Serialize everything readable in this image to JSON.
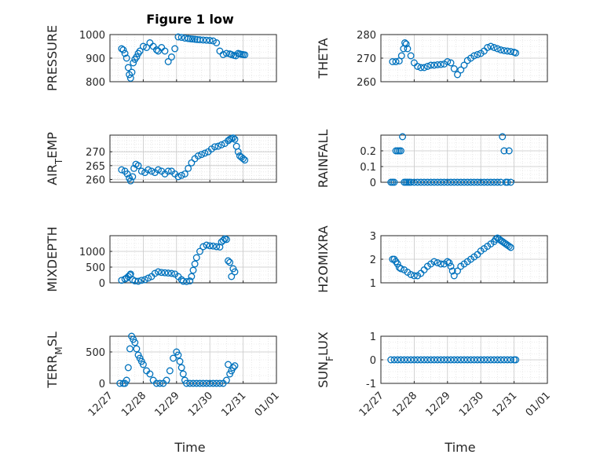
{
  "title": "Figure 1 low",
  "xlabel": "Time",
  "x_tick_labels": [
    "12/27",
    "12/28",
    "12/29",
    "12/30",
    "12/31",
    "01/01"
  ],
  "marker_color": "#0072BD",
  "chart_data": [
    {
      "type": "scatter",
      "ylabel": "PRESSURE",
      "ylim": [
        800,
        1000
      ],
      "yticks": [
        800,
        900,
        1000
      ],
      "xlim": [
        0,
        5
      ],
      "grid": true,
      "x": [
        0.35,
        0.4,
        0.45,
        0.5,
        0.55,
        0.58,
        0.62,
        0.66,
        0.7,
        0.75,
        0.8,
        0.85,
        0.9,
        1.0,
        1.1,
        1.2,
        1.3,
        1.4,
        1.45,
        1.55,
        1.65,
        1.75,
        1.85,
        1.95,
        2.05,
        2.15,
        2.25,
        2.35,
        2.42,
        2.48,
        2.55,
        2.62,
        2.7,
        2.8,
        2.9,
        3.0,
        3.1,
        3.2,
        3.3,
        3.4,
        3.5,
        3.6,
        3.65,
        3.72,
        3.78,
        3.85,
        3.9,
        3.95,
        4.0,
        4.05
      ],
      "y": [
        940,
        935,
        920,
        900,
        860,
        830,
        815,
        840,
        880,
        895,
        905,
        920,
        930,
        950,
        945,
        965,
        950,
        935,
        930,
        945,
        930,
        885,
        905,
        940,
        990,
        988,
        985,
        983,
        982,
        981,
        980,
        979,
        978,
        977,
        976,
        975,
        973,
        965,
        930,
        915,
        920,
        918,
        915,
        912,
        910,
        920,
        918,
        916,
        915,
        914
      ]
    },
    {
      "type": "scatter",
      "ylabel": "THETA",
      "ylim": [
        260,
        280
      ],
      "yticks": [
        260,
        270,
        280
      ],
      "xlim": [
        0,
        5
      ],
      "grid": true,
      "x": [
        0.35,
        0.45,
        0.55,
        0.62,
        0.68,
        0.72,
        0.76,
        0.8,
        0.9,
        1.0,
        1.1,
        1.2,
        1.3,
        1.4,
        1.5,
        1.6,
        1.7,
        1.8,
        1.9,
        2.0,
        2.1,
        2.2,
        2.3,
        2.4,
        2.5,
        2.6,
        2.7,
        2.8,
        2.9,
        3.0,
        3.1,
        3.2,
        3.3,
        3.4,
        3.5,
        3.6,
        3.7,
        3.8,
        3.9,
        4.0,
        4.05
      ],
      "y": [
        268.5,
        268.5,
        268.8,
        271,
        274,
        276.5,
        276,
        274,
        271,
        268,
        266.5,
        266,
        266,
        266.5,
        267,
        267,
        267.2,
        267.3,
        267.5,
        268.5,
        268,
        265.5,
        263,
        265,
        267,
        269,
        270,
        271,
        271.5,
        272,
        273,
        274.5,
        275,
        274.5,
        274,
        273.5,
        273.2,
        273,
        272.8,
        272.5,
        272.2
      ]
    },
    {
      "type": "scatter",
      "ylabel": "AIR_TEMP",
      "ylim": [
        259,
        276
      ],
      "yticks": [
        260,
        265,
        270
      ],
      "xlim": [
        0,
        5
      ],
      "grid": true,
      "x": [
        0.35,
        0.45,
        0.52,
        0.58,
        0.62,
        0.68,
        0.72,
        0.78,
        0.85,
        0.95,
        1.05,
        1.15,
        1.25,
        1.35,
        1.45,
        1.55,
        1.65,
        1.75,
        1.85,
        1.95,
        2.05,
        2.15,
        2.25,
        2.35,
        2.45,
        2.55,
        2.65,
        2.75,
        2.85,
        2.95,
        3.05,
        3.15,
        3.25,
        3.35,
        3.45,
        3.55,
        3.6,
        3.65,
        3.7,
        3.75,
        3.8,
        3.85,
        3.9,
        3.95,
        4.0,
        4.05
      ],
      "y": [
        263.5,
        263,
        262,
        260.5,
        259.5,
        261,
        264,
        265.5,
        265,
        263,
        262.5,
        263.5,
        263,
        262.5,
        263.5,
        263,
        262,
        263,
        263,
        262,
        261,
        261.5,
        262,
        264,
        266,
        267.5,
        268.5,
        269,
        269.5,
        270,
        271,
        271.8,
        272,
        272.5,
        273,
        274,
        274.5,
        274.8,
        275,
        274.5,
        272,
        270,
        268.5,
        268,
        267.5,
        267
      ]
    },
    {
      "type": "scatter",
      "ylabel": "RAINFALL",
      "ylim": [
        0,
        0.3
      ],
      "yticks": [
        0,
        0.1,
        0.2
      ],
      "xlim": [
        0,
        5
      ],
      "grid": true,
      "x": [
        0.3,
        0.35,
        0.4,
        0.45,
        0.5,
        0.55,
        0.6,
        0.65,
        0.7,
        0.75,
        0.8,
        0.85,
        0.9,
        1.0,
        1.1,
        1.2,
        1.3,
        1.4,
        1.5,
        1.6,
        1.7,
        1.8,
        1.9,
        2.0,
        2.1,
        2.2,
        2.3,
        2.4,
        2.5,
        2.6,
        2.7,
        2.8,
        2.9,
        3.0,
        3.1,
        3.2,
        3.3,
        3.4,
        3.5,
        3.6,
        3.65,
        3.7,
        3.75,
        3.8,
        3.85,
        3.9
      ],
      "y": [
        0,
        0,
        0,
        0.2,
        0.2,
        0.2,
        0.2,
        0.29,
        0,
        0,
        0,
        0,
        0,
        0,
        0,
        0,
        0,
        0,
        0,
        0,
        0,
        0,
        0,
        0,
        0,
        0,
        0,
        0,
        0,
        0,
        0,
        0,
        0,
        0,
        0,
        0,
        0,
        0,
        0,
        0,
        0.29,
        0.2,
        0,
        0,
        0.2,
        0
      ]
    },
    {
      "type": "scatter",
      "ylabel": "MIXDEPTH",
      "ylim": [
        0,
        1500
      ],
      "yticks": [
        0,
        500,
        1000
      ],
      "xlim": [
        0,
        5
      ],
      "grid": true,
      "x": [
        0.35,
        0.45,
        0.5,
        0.55,
        0.6,
        0.62,
        0.68,
        0.75,
        0.85,
        0.95,
        1.05,
        1.15,
        1.25,
        1.35,
        1.45,
        1.55,
        1.65,
        1.75,
        1.85,
        1.95,
        2.05,
        2.15,
        2.2,
        2.3,
        2.4,
        2.45,
        2.5,
        2.55,
        2.6,
        2.7,
        2.8,
        2.9,
        3.0,
        3.1,
        3.2,
        3.3,
        3.35,
        3.4,
        3.45,
        3.5,
        3.55,
        3.6,
        3.65,
        3.7,
        3.75
      ],
      "y": [
        80,
        120,
        150,
        200,
        250,
        280,
        100,
        60,
        50,
        80,
        100,
        150,
        200,
        300,
        350,
        330,
        320,
        310,
        300,
        280,
        200,
        100,
        50,
        40,
        60,
        200,
        400,
        600,
        800,
        1000,
        1150,
        1200,
        1180,
        1170,
        1150,
        1140,
        1300,
        1350,
        1400,
        1380,
        700,
        650,
        200,
        450,
        350
      ]
    },
    {
      "type": "scatter",
      "ylabel": "H2OMIXRA",
      "ylim": [
        1,
        3
      ],
      "yticks": [
        1,
        2,
        3
      ],
      "xlim": [
        0,
        5
      ],
      "grid": true,
      "x": [
        0.35,
        0.4,
        0.45,
        0.5,
        0.55,
        0.6,
        0.7,
        0.8,
        0.9,
        1.0,
        1.1,
        1.2,
        1.3,
        1.4,
        1.5,
        1.6,
        1.7,
        1.8,
        1.9,
        2.0,
        2.05,
        2.1,
        2.15,
        2.2,
        2.3,
        2.4,
        2.5,
        2.6,
        2.7,
        2.8,
        2.9,
        3.0,
        3.1,
        3.2,
        3.3,
        3.4,
        3.45,
        3.5,
        3.55,
        3.6,
        3.65,
        3.7,
        3.75,
        3.8,
        3.85,
        3.9
      ],
      "y": [
        2.0,
        2.0,
        1.9,
        1.8,
        1.65,
        1.6,
        1.55,
        1.45,
        1.35,
        1.3,
        1.3,
        1.4,
        1.55,
        1.7,
        1.8,
        1.9,
        1.85,
        1.8,
        1.8,
        1.9,
        1.85,
        1.7,
        1.5,
        1.3,
        1.5,
        1.7,
        1.8,
        1.9,
        2.0,
        2.1,
        2.2,
        2.35,
        2.45,
        2.55,
        2.65,
        2.75,
        2.85,
        2.9,
        2.85,
        2.8,
        2.75,
        2.7,
        2.65,
        2.6,
        2.55,
        2.5
      ]
    },
    {
      "type": "scatter",
      "ylabel": "TERR_MSL",
      "ylim": [
        0,
        750
      ],
      "yticks": [
        0,
        500
      ],
      "xlim": [
        0,
        5
      ],
      "grid": true,
      "x": [
        0.3,
        0.4,
        0.45,
        0.5,
        0.55,
        0.6,
        0.65,
        0.7,
        0.75,
        0.8,
        0.85,
        0.9,
        0.95,
        1.0,
        1.1,
        1.2,
        1.3,
        1.4,
        1.5,
        1.6,
        1.7,
        1.8,
        1.9,
        2.0,
        2.05,
        2.1,
        2.15,
        2.2,
        2.25,
        2.3,
        2.4,
        2.5,
        2.6,
        2.7,
        2.8,
        2.9,
        3.0,
        3.1,
        3.2,
        3.3,
        3.4,
        3.5,
        3.55,
        3.6,
        3.65,
        3.7,
        3.75
      ],
      "y": [
        0,
        0,
        0,
        50,
        250,
        550,
        750,
        700,
        650,
        550,
        450,
        400,
        350,
        300,
        200,
        150,
        50,
        0,
        0,
        0,
        50,
        200,
        400,
        500,
        450,
        350,
        250,
        150,
        50,
        0,
        0,
        0,
        0,
        0,
        0,
        0,
        0,
        0,
        0,
        0,
        0,
        50,
        300,
        150,
        200,
        250,
        280
      ]
    },
    {
      "type": "scatter",
      "ylabel": "SUN_FLUX",
      "ylim": [
        -1,
        1
      ],
      "yticks": [
        -1,
        0,
        1
      ],
      "xlim": [
        0,
        5
      ],
      "grid": true,
      "x": [
        0.3,
        0.4,
        0.5,
        0.6,
        0.7,
        0.8,
        0.9,
        1.0,
        1.1,
        1.2,
        1.3,
        1.4,
        1.5,
        1.6,
        1.7,
        1.8,
        1.9,
        2.0,
        2.1,
        2.2,
        2.3,
        2.4,
        2.5,
        2.6,
        2.7,
        2.8,
        2.9,
        3.0,
        3.1,
        3.2,
        3.3,
        3.4,
        3.5,
        3.6,
        3.7,
        3.8,
        3.9,
        4.0,
        4.05
      ],
      "y": [
        0,
        0,
        0,
        0,
        0,
        0,
        0,
        0,
        0,
        0,
        0,
        0,
        0,
        0,
        0,
        0,
        0,
        0,
        0,
        0,
        0,
        0,
        0,
        0,
        0,
        0,
        0,
        0,
        0,
        0,
        0,
        0,
        0,
        0,
        0,
        0,
        0,
        0,
        0
      ]
    }
  ]
}
